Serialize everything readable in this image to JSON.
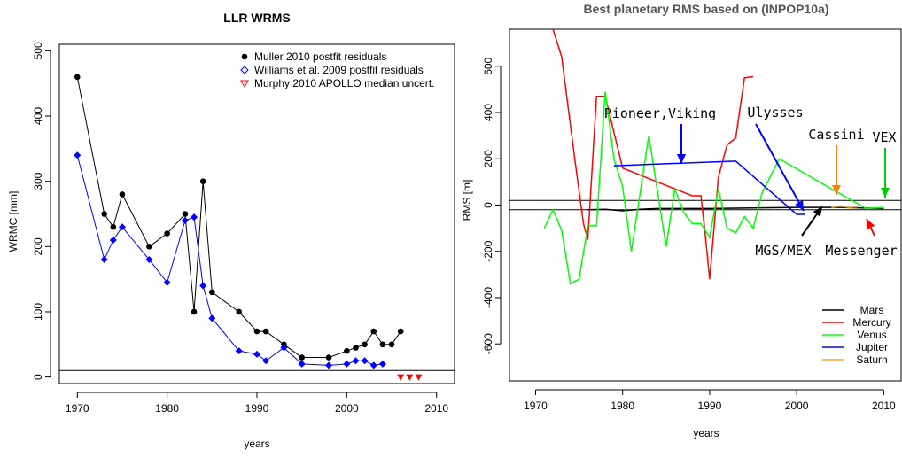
{
  "chart_data": [
    {
      "type": "line",
      "title": "LLR WRMS",
      "xlabel": "years",
      "ylabel": "WRMC [mm]",
      "xlim": [
        1968,
        2012
      ],
      "ylim": [
        -10,
        510
      ],
      "xticks": [
        1970,
        1980,
        1990,
        2000,
        2010
      ],
      "yticks": [
        0,
        100,
        200,
        300,
        400,
        500
      ],
      "reference_line_y": 10,
      "legend_position": "top-right",
      "series": [
        {
          "name": "Muller 2010 postfit residuals",
          "color": "#000000",
          "marker": "circle",
          "x": [
            1970,
            1973,
            1974,
            1975,
            1978,
            1980,
            1982,
            1983,
            1984,
            1985,
            1988,
            1990,
            1991,
            1993,
            1995,
            1998,
            2000,
            2001,
            2002,
            2003,
            2004,
            2005,
            2006
          ],
          "y": [
            460,
            250,
            230,
            280,
            200,
            220,
            250,
            100,
            300,
            130,
            100,
            70,
            70,
            50,
            30,
            30,
            40,
            45,
            50,
            70,
            50,
            50,
            70
          ]
        },
        {
          "name": "Williams et al. 2009  postfit residuals",
          "color": "#0000ff",
          "marker": "diamond",
          "x": [
            1970,
            1973,
            1974,
            1975,
            1978,
            1980,
            1982,
            1983,
            1984,
            1985,
            1988,
            1990,
            1991,
            1993,
            1995,
            1998,
            2000,
            2001,
            2002,
            2003,
            2004
          ],
          "y": [
            340,
            180,
            210,
            230,
            180,
            145,
            240,
            245,
            140,
            90,
            40,
            35,
            25,
            45,
            20,
            18,
            20,
            25,
            25,
            18,
            20
          ]
        },
        {
          "name": "Murphy 2010 APOLLO median uncert.",
          "color": "#ff0000",
          "marker": "triangle-down",
          "x": [
            2006,
            2007,
            2008
          ],
          "y": [
            0,
            0,
            0
          ]
        }
      ]
    },
    {
      "type": "line",
      "title": "Best planetary RMS based on (INPOP10a)",
      "xlabel": "years",
      "ylabel": "RMS [m]",
      "xlim": [
        1967,
        2012
      ],
      "ylim": [
        -760,
        760
      ],
      "xticks": [
        1970,
        1980,
        1990,
        2000,
        2010
      ],
      "yticks": [
        -600,
        -400,
        -200,
        0,
        200,
        400,
        600
      ],
      "reference_lines_y": [
        -20,
        20
      ],
      "legend_position": "bottom-right",
      "series": [
        {
          "name": "Mars",
          "color": "#000000",
          "x": [
            1976,
            1978,
            1980,
            1982,
            1984,
            1990,
            2000,
            2005,
            2010
          ],
          "y": [
            -20,
            -18,
            -25,
            -18,
            -15,
            -15,
            -10,
            -10,
            -15
          ]
        },
        {
          "name": "Mercury",
          "color": "#ff0000",
          "x": [
            1972,
            1973,
            1974.5,
            1975.5,
            1976,
            1977,
            1978,
            1980,
            1988,
            1989,
            1989.5,
            1990,
            1991,
            1992,
            1993,
            1994,
            1995
          ],
          "y": [
            760,
            640,
            200,
            -80,
            -150,
            470,
            470,
            160,
            40,
            40,
            -130,
            -320,
            120,
            260,
            290,
            550,
            555
          ]
        },
        {
          "name": "Venus",
          "color": "#00ff00",
          "x": [
            1971,
            1972,
            1973,
            1974,
            1975,
            1976,
            1977,
            1978,
            1979,
            1980,
            1981,
            1983,
            1985,
            1986,
            1987,
            1988,
            1989,
            1990,
            1991,
            1992,
            1993,
            1994,
            1995,
            1996,
            1998,
            2004,
            2008,
            2010
          ],
          "y": [
            -100,
            -20,
            -110,
            -340,
            -320,
            -90,
            -90,
            490,
            200,
            80,
            -200,
            300,
            -180,
            70,
            -30,
            -80,
            -80,
            -140,
            70,
            -100,
            -120,
            -50,
            -100,
            50,
            200,
            70,
            -15,
            -10
          ]
        },
        {
          "name": "Jupiter",
          "color": "#0000ff",
          "x": [
            1979,
            1993,
            2000,
            2001
          ],
          "y": [
            170,
            190,
            -40,
            -40
          ]
        },
        {
          "name": "Saturn",
          "color": "#ffa500",
          "x": [
            2004,
            2005,
            2006,
            2007
          ],
          "y": [
            -10,
            -5,
            -10,
            -8
          ]
        }
      ],
      "annotations": [
        {
          "text": "Pioneer,Viking",
          "color": "#0000ff",
          "arrow_to": [
            1987.5,
            165
          ]
        },
        {
          "text": "Ulysses",
          "color": "#0000ff",
          "arrow_to": [
            2001,
            -45
          ]
        },
        {
          "text": "Cassini",
          "color": "#ff7f00",
          "arrow_to": [
            2004.5,
            0
          ]
        },
        {
          "text": "VEX",
          "color": "#00cc00",
          "arrow_to": [
            2009.7,
            0
          ]
        },
        {
          "text": "MGS/MEX",
          "color": "#000000",
          "arrow_to": [
            2003,
            -15
          ]
        },
        {
          "text": "Messenger",
          "color": "#ff0000",
          "arrow_to": [
            2008,
            -135
          ]
        }
      ]
    }
  ]
}
